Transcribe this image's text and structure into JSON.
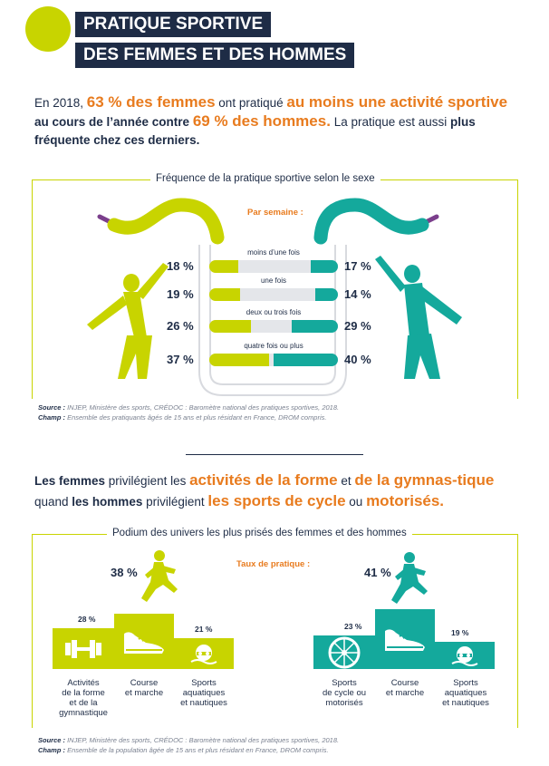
{
  "header": {
    "title_line1": "PRATIQUE SPORTIVE",
    "title_line2": "DES FEMMES ET DES HOMMES"
  },
  "intro": {
    "p1": "En 2018, ",
    "p2": "63 % des femmes",
    "p3": " ont pratiqué ",
    "p4": "au moins une activité sportive",
    "p5": " au cours de l’année contre ",
    "p6": "69 % des hommes.",
    "p7": " La pratique est aussi ",
    "p8": "plus fréquente chez ces derniers."
  },
  "frequency": {
    "title": "Fréquence de la pratique sportive selon le sexe",
    "subtitle": "Par semaine :",
    "rows": [
      {
        "label": "moins d’une fois",
        "women": "18 %",
        "men": "17 %",
        "women_value": 18,
        "men_value": 17
      },
      {
        "label": "une fois",
        "women": "19 %",
        "men": "14 %",
        "women_value": 19,
        "men_value": 14
      },
      {
        "label": "deux ou trois fois",
        "women": "26 %",
        "men": "29 %",
        "women_value": 26,
        "men_value": 29
      },
      {
        "label": "quatre fois ou plus",
        "women": "37 %",
        "men": "40 %",
        "women_value": 37,
        "men_value": 40
      }
    ],
    "source_label": "Source :",
    "source_text": " INJEP, Ministère des sports, CRÉDOC : Baromètre national des pratiques sportives, 2018.",
    "champ_label": "Champ :",
    "champ_text": " Ensemble des pratiquants âgés de 15 ans et plus résidant en France, DROM compris."
  },
  "intro2": {
    "p1": "Les femmes",
    "p2": " privilégient les ",
    "p3": "activités de la forme",
    "p4": " et ",
    "p5": "de la gymnas-tique",
    "p6": " quand ",
    "p7": "les hommes",
    "p8": " privilégient ",
    "p9": "les sports de cycle",
    "p10": " ou ",
    "p11": "motorisés."
  },
  "podium": {
    "title": "Podium des univers les plus prisés des femmes et des hommes",
    "subtitle": "Taux de pratique :",
    "women": {
      "first": {
        "pct": "38 %",
        "label": "Course\net marche",
        "value": 38
      },
      "second": {
        "pct": "28 %",
        "label": "Activités\nde la forme\net de la\ngymnastique",
        "value": 28
      },
      "third": {
        "pct": "21 %",
        "label": "Sports\naquatiques\net nautiques",
        "value": 21
      }
    },
    "men": {
      "first": {
        "pct": "41 %",
        "label": "Course\net marche",
        "value": 41
      },
      "second": {
        "pct": "23 %",
        "label": "Sports\nde cycle ou\nmotorisés",
        "value": 23
      },
      "third": {
        "pct": "19 %",
        "label": "Sports\naquatiques\net nautiques",
        "value": 19
      }
    },
    "source_label": "Source :",
    "source_text": " INJEP, Ministère des sports, CRÉDOC : Baromètre national des pratiques sportives, 2018.",
    "champ_label": "Champ :",
    "champ_text": " Ensemble de la population âgée de 15 ans et plus résidant en France, DROM compris."
  },
  "colors": {
    "women": "#c8d400",
    "men": "#14a99c",
    "navy": "#1e2c46",
    "orange": "#e87b1e",
    "grip": "#7b3f8c"
  },
  "icons": {
    "women_figure": "woman-stretching-icon",
    "men_figure": "man-stretching-icon",
    "dumbbell": "dumbbell-icon",
    "shoe": "running-shoe-icon",
    "swim": "swimmer-icon",
    "wheel": "wheel-icon"
  }
}
